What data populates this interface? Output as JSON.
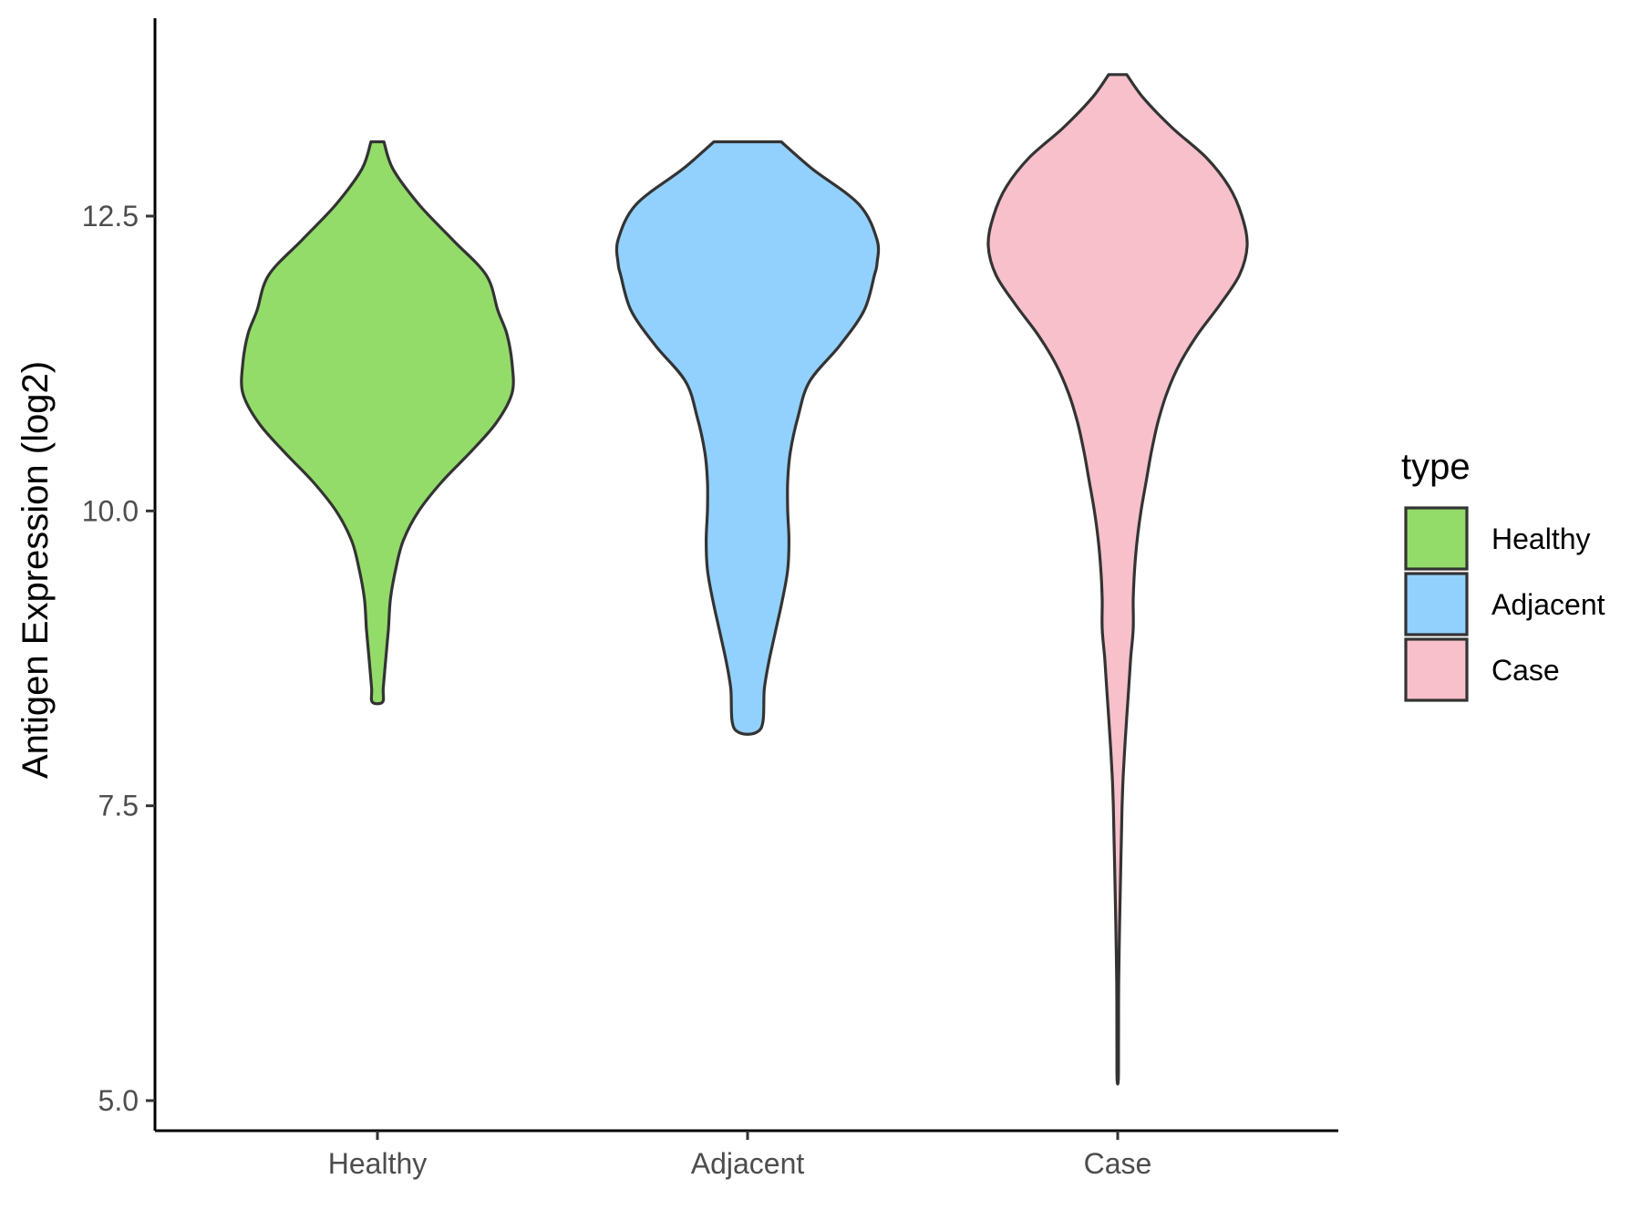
{
  "chart_data": {
    "type": "violin",
    "title": "",
    "xlabel": "",
    "ylabel": "Antigen Expression (log2)",
    "ylim": [
      4.75,
      14.1
    ],
    "yticks": [
      5.0,
      7.5,
      10.0,
      12.5
    ],
    "ytick_labels": [
      "5.0",
      "7.5",
      "10.0",
      "12.5"
    ],
    "categories": [
      "Healthy",
      "Adjacent",
      "Case"
    ],
    "grid": false,
    "legend": {
      "title": "type",
      "placement": "right",
      "entries": [
        "Healthy",
        "Adjacent",
        "Case"
      ]
    },
    "colors": {
      "Healthy": "#93dc6a",
      "Adjacent": "#92d1fd",
      "Case": "#f7c0ca",
      "outline": "#333333"
    },
    "series": [
      {
        "name": "Healthy",
        "min": 8.38,
        "max": 13.13,
        "profile": [
          [
            13.13,
            0.05
          ],
          [
            12.9,
            0.12
          ],
          [
            12.6,
            0.32
          ],
          [
            12.3,
            0.58
          ],
          [
            12.0,
            0.84
          ],
          [
            11.7,
            0.93
          ],
          [
            11.5,
            1.0
          ],
          [
            11.25,
            1.04
          ],
          [
            11.0,
            1.04
          ],
          [
            10.75,
            0.92
          ],
          [
            10.5,
            0.72
          ],
          [
            10.25,
            0.5
          ],
          [
            10.0,
            0.32
          ],
          [
            9.75,
            0.2
          ],
          [
            9.5,
            0.14
          ],
          [
            9.25,
            0.1
          ],
          [
            9.0,
            0.085
          ],
          [
            8.75,
            0.065
          ],
          [
            8.5,
            0.045
          ],
          [
            8.38,
            0.04
          ]
        ]
      },
      {
        "name": "Adjacent",
        "min": 8.15,
        "max": 13.13,
        "profile": [
          [
            13.13,
            0.26
          ],
          [
            12.9,
            0.5
          ],
          [
            12.6,
            0.86
          ],
          [
            12.3,
            1.0
          ],
          [
            12.1,
            1.0
          ],
          [
            12.0,
            0.98
          ],
          [
            11.7,
            0.9
          ],
          [
            11.4,
            0.71
          ],
          [
            11.1,
            0.48
          ],
          [
            10.8,
            0.39
          ],
          [
            10.5,
            0.33
          ],
          [
            10.25,
            0.31
          ],
          [
            10.0,
            0.31
          ],
          [
            9.75,
            0.32
          ],
          [
            9.5,
            0.31
          ],
          [
            9.25,
            0.27
          ],
          [
            9.0,
            0.22
          ],
          [
            8.75,
            0.17
          ],
          [
            8.5,
            0.13
          ],
          [
            8.15,
            0.1
          ]
        ]
      },
      {
        "name": "Case",
        "min": 5.18,
        "max": 13.7,
        "profile": [
          [
            13.7,
            0.07
          ],
          [
            13.5,
            0.2
          ],
          [
            13.25,
            0.42
          ],
          [
            13.0,
            0.68
          ],
          [
            12.75,
            0.86
          ],
          [
            12.5,
            0.96
          ],
          [
            12.25,
            1.0
          ],
          [
            12.0,
            0.94
          ],
          [
            11.75,
            0.79
          ],
          [
            11.5,
            0.62
          ],
          [
            11.25,
            0.48
          ],
          [
            11.0,
            0.38
          ],
          [
            10.75,
            0.31
          ],
          [
            10.5,
            0.26
          ],
          [
            10.25,
            0.22
          ],
          [
            10.0,
            0.18
          ],
          [
            9.75,
            0.15
          ],
          [
            9.5,
            0.13
          ],
          [
            9.25,
            0.12
          ],
          [
            9.0,
            0.12
          ],
          [
            8.75,
            0.1
          ],
          [
            8.5,
            0.085
          ],
          [
            8.25,
            0.07
          ],
          [
            8.0,
            0.055
          ],
          [
            7.75,
            0.042
          ],
          [
            7.5,
            0.034
          ],
          [
            7.0,
            0.024
          ],
          [
            6.5,
            0.015
          ],
          [
            6.0,
            0.008
          ],
          [
            5.5,
            0.006
          ],
          [
            5.18,
            0.005
          ]
        ]
      }
    ]
  }
}
